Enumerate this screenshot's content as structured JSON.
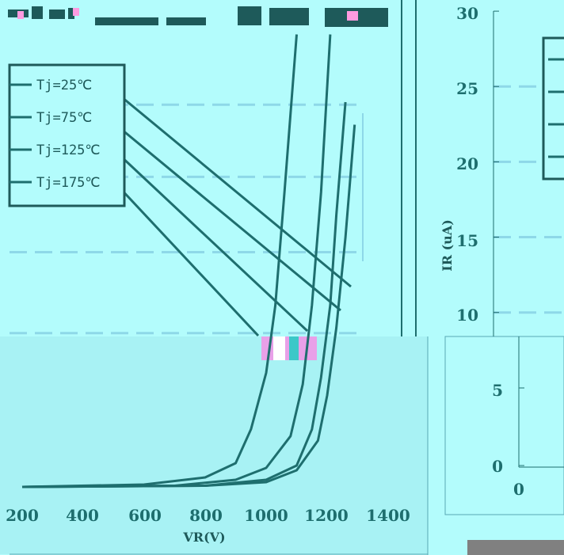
{
  "chart_data": [
    {
      "type": "line",
      "title": "",
      "xlabel": "VR(V)",
      "ylabel": "",
      "x_ticks": [
        "200",
        "400",
        "600",
        "800",
        "1000",
        "1200",
        "1400"
      ],
      "xlim": [
        200,
        1400
      ],
      "grid": "horizontal dashed",
      "legend_position": "top-left",
      "series": [
        {
          "name": "Tj=25℃",
          "x": [
            200,
            600,
            800,
            900,
            950,
            1000,
            1030,
            1060,
            1100
          ],
          "y": [
            0.0,
            0.1,
            0.4,
            1.0,
            2.5,
            5.0,
            8.0,
            13.0,
            20.0
          ]
        },
        {
          "name": "Tj=75℃",
          "x": [
            200,
            700,
            900,
            1000,
            1080,
            1120,
            1150,
            1180,
            1210
          ],
          "y": [
            0.0,
            0.05,
            0.3,
            0.8,
            2.2,
            4.5,
            8.0,
            13.0,
            20.0
          ]
        },
        {
          "name": "Tj=125℃",
          "x": [
            200,
            800,
            1000,
            1100,
            1150,
            1180,
            1210,
            1230,
            1260
          ],
          "y": [
            0.0,
            0.05,
            0.3,
            0.9,
            2.5,
            4.8,
            8.0,
            12.0,
            17.0
          ]
        },
        {
          "name": "Tj=175℃",
          "x": [
            200,
            800,
            1000,
            1100,
            1170,
            1200,
            1230,
            1260,
            1290
          ],
          "y": [
            0.0,
            0.05,
            0.2,
            0.7,
            2.0,
            4.0,
            7.0,
            11.0,
            16.0
          ]
        }
      ]
    },
    {
      "type": "line",
      "title": "",
      "xlabel": "",
      "ylabel": "IR (uA)",
      "y_ticks": [
        "0",
        "5",
        "10",
        "15",
        "20",
        "25",
        "30"
      ],
      "x_ticks": [
        "0"
      ],
      "ylim": [
        0,
        30
      ],
      "grid": "horizontal dashed",
      "series": []
    }
  ],
  "colors": {
    "background": "#b3fcfc",
    "curve": "#1e6e6e",
    "grid": "#8ed8e8",
    "text": "#1e6e6e"
  }
}
